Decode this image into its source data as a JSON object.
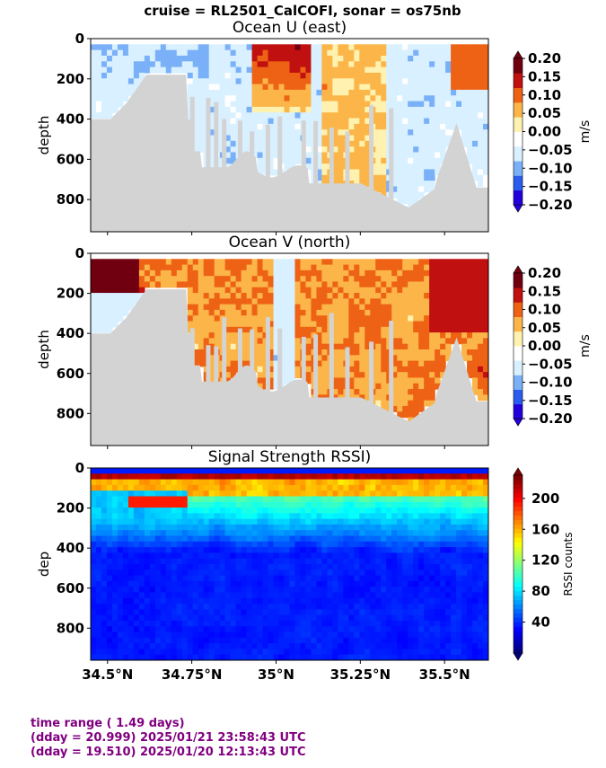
{
  "suptitle": "cruise = RL2501_CalCOFI,  sonar = os75nb",
  "chart_data": [
    {
      "type": "heatmap",
      "title": "Ocean U (east)",
      "ylabel": "depth",
      "ylim": [
        960,
        0
      ],
      "xlim": [
        34.45,
        35.63
      ],
      "yticks": [
        "0",
        "200",
        "400",
        "600",
        "800"
      ],
      "xticks": [
        "34.5°N",
        "34.75°N",
        "35°N",
        "35.25°N",
        "35.5°N"
      ],
      "colorbar": {
        "label": "m/s",
        "vmin": -0.2,
        "vmax": 0.2,
        "ticks": [
          "0.20",
          "0.15",
          "0.10",
          "0.05",
          "0.00",
          "−0.05",
          "−0.10",
          "−0.15",
          "−0.20"
        ],
        "colors": [
          "#2200dd",
          "#2b5cf0",
          "#7ab0f8",
          "#d8f0ff",
          "#ffffff",
          "#fff2b0",
          "#fbb548",
          "#ee6215",
          "#c01010",
          "#700010"
        ]
      }
    },
    {
      "type": "heatmap",
      "title": "Ocean V (north)",
      "ylabel": "depth",
      "ylim": [
        960,
        0
      ],
      "xlim": [
        34.45,
        35.63
      ],
      "yticks": [
        "0",
        "200",
        "400",
        "600",
        "800"
      ],
      "xticks": [
        "34.5°N",
        "34.75°N",
        "35°N",
        "35.25°N",
        "35.5°N"
      ],
      "colorbar": {
        "label": "m/s",
        "vmin": -0.2,
        "vmax": 0.2,
        "ticks": [
          "0.20",
          "0.15",
          "0.10",
          "0.05",
          "0.00",
          "−0.05",
          "−0.10",
          "−0.15",
          "−0.20"
        ],
        "colors": [
          "#2200dd",
          "#2b5cf0",
          "#7ab0f8",
          "#d8f0ff",
          "#ffffff",
          "#fff2b0",
          "#fbb548",
          "#ee6215",
          "#c01010",
          "#700010"
        ]
      }
    },
    {
      "type": "heatmap",
      "title": "Signal Strength RSSI)",
      "ylabel": "dep",
      "ylim": [
        960,
        0
      ],
      "xlim": [
        34.45,
        35.63
      ],
      "yticks": [
        "0",
        "200",
        "400",
        "600",
        "800"
      ],
      "xticks": [
        "34.5°N",
        "34.75°N",
        "35°N",
        "35.25°N",
        "35.5°N"
      ],
      "colorbar": {
        "label": "RSSI counts",
        "vmin": 0,
        "vmax": 230,
        "ticks": [
          "200",
          "160",
          "120",
          "80",
          "40"
        ],
        "colormap": "jet"
      }
    }
  ],
  "footer": {
    "line1": "time range ( 1.49 days)",
    "line2": "(dday = 20.999) 2025/01/21 23:58:43 UTC",
    "line3": "(dday = 19.510) 2025/01/20 12:13:43 UTC"
  },
  "colors": {
    "bathymetry": "#d3d3d3",
    "footer_text": "#800080"
  }
}
